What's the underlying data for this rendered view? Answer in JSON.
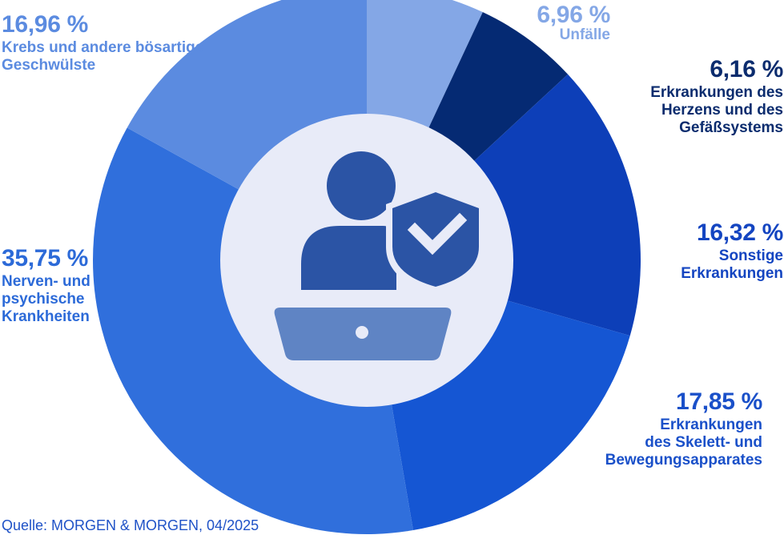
{
  "chart_data": {
    "type": "pie",
    "slices": [
      {
        "label": "Unfälle",
        "value": 6.96,
        "value_text": "6,96 %",
        "color": "#84a7e6"
      },
      {
        "label": "Erkrankungen des Herzens und des Gefäßsystems",
        "value": 6.16,
        "value_text": "6,16 %",
        "color": "#052a73"
      },
      {
        "label": "Sonstige Erkrankungen",
        "value": 16.32,
        "value_text": "16,32 %",
        "color": "#0d3fb8"
      },
      {
        "label": "Erkrankungen des Skelett- und Bewegungsapparates",
        "value": 17.85,
        "value_text": "17,85 %",
        "color": "#1556d3"
      },
      {
        "label": "Nerven- und psychische Krankheiten",
        "value": 35.75,
        "value_text": "35,75 %",
        "color": "#306fdc"
      },
      {
        "label": "Krebs und andere bösartige Geschwülste",
        "value": 16.96,
        "value_text": "16,96 %",
        "color": "#5b8be0"
      }
    ],
    "label_colors": {
      "Unfälle": "#84a7e6",
      "Herz": "#0b2c6e",
      "Sonstige": "#1445c1",
      "Skelett": "#1a50c9",
      "Nerven": "#2c6ad8",
      "Krebs": "#5b8be0"
    },
    "center_icon": "user-shield-laptop-icon",
    "center_fill": "#e8ebf8"
  },
  "labels": {
    "unfaelle": {
      "pct": "6,96 %",
      "lines": [
        "Unfälle"
      ]
    },
    "herz": {
      "pct": "6,16 %",
      "lines": [
        "Erkrankungen des",
        "Herzens und des",
        "Gefäßsystems"
      ]
    },
    "sonstige": {
      "pct": "16,32 %",
      "lines": [
        "Sonstige",
        "Erkrankungen"
      ]
    },
    "skelett": {
      "pct": "17,85 %",
      "lines": [
        "Erkrankungen",
        "des Skelett- und",
        "Bewegungsapparates"
      ]
    },
    "nerven": {
      "pct": "35,75 %",
      "lines": [
        "Nerven- und",
        "psychische",
        "Krankheiten"
      ]
    },
    "krebs": {
      "pct": "16,96 %",
      "lines": [
        "Krebs und andere bösartige",
        "Geschwülste"
      ]
    }
  },
  "source": "Quelle: MORGEN & MORGEN, 04/2025"
}
